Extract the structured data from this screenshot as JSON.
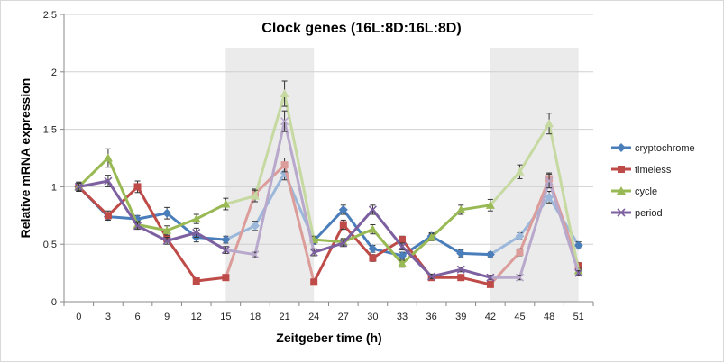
{
  "chart_data": {
    "type": "line",
    "title": "Clock genes (16L:8D:16L:8D)",
    "xlabel": "Zeitgeber time (h)",
    "ylabel": "Relative mRNA expression",
    "x": [
      0,
      3,
      6,
      9,
      12,
      15,
      18,
      21,
      24,
      27,
      30,
      33,
      36,
      39,
      42,
      45,
      48,
      51
    ],
    "ylim": [
      0,
      2.5
    ],
    "ytick_labels": [
      "0",
      "0,5",
      "1",
      "1,5",
      "2",
      "2,5"
    ],
    "yticks": [
      0,
      0.5,
      1,
      1.5,
      2,
      2.5
    ],
    "dark_periods": [
      [
        15,
        24
      ],
      [
        42,
        51
      ]
    ],
    "legend_position": "right",
    "series": [
      {
        "name": "cryptochrome",
        "color": "#4a7ebb",
        "marker": "diamond",
        "values": [
          1.0,
          0.74,
          0.72,
          0.77,
          0.56,
          0.54,
          0.66,
          1.12,
          0.53,
          0.8,
          0.46,
          0.4,
          0.57,
          0.42,
          0.41,
          0.57,
          0.91,
          0.49
        ],
        "errors": [
          0.03,
          0.03,
          0.03,
          0.05,
          0.04,
          0.03,
          0.04,
          0.06,
          0.03,
          0.04,
          0.03,
          0.03,
          0.03,
          0.03,
          0.02,
          0.03,
          0.05,
          0.03
        ]
      },
      {
        "name": "timeless",
        "color": "#be4b48",
        "marker": "square",
        "values": [
          1.0,
          0.75,
          1.0,
          0.55,
          0.18,
          0.21,
          0.94,
          1.19,
          0.17,
          0.67,
          0.38,
          0.54,
          0.21,
          0.21,
          0.15,
          0.43,
          1.07,
          0.31
        ],
        "errors": [
          0.04,
          0.04,
          0.05,
          0.03,
          0.02,
          0.02,
          0.04,
          0.06,
          0.02,
          0.04,
          0.03,
          0.03,
          0.02,
          0.02,
          0.02,
          0.03,
          0.05,
          0.03
        ]
      },
      {
        "name": "cycle",
        "color": "#98b954",
        "marker": "triangle",
        "values": [
          1.0,
          1.25,
          0.67,
          0.62,
          0.72,
          0.85,
          0.92,
          1.81,
          0.54,
          0.52,
          0.63,
          0.33,
          0.56,
          0.8,
          0.84,
          1.13,
          1.55,
          0.27
        ],
        "errors": [
          0.04,
          0.08,
          0.03,
          0.04,
          0.04,
          0.05,
          0.05,
          0.11,
          0.03,
          0.03,
          0.04,
          0.03,
          0.03,
          0.04,
          0.05,
          0.06,
          0.09,
          0.02
        ]
      },
      {
        "name": "period",
        "color": "#7d60a0",
        "marker": "x",
        "values": [
          1.0,
          1.05,
          0.66,
          0.53,
          0.6,
          0.45,
          0.41,
          1.57,
          0.43,
          0.51,
          0.8,
          0.48,
          0.22,
          0.28,
          0.21,
          0.21,
          1.05,
          0.25
        ],
        "errors": [
          0.03,
          0.05,
          0.03,
          0.03,
          0.04,
          0.03,
          0.02,
          0.09,
          0.03,
          0.03,
          0.04,
          0.03,
          0.02,
          0.02,
          0.02,
          0.02,
          0.06,
          0.02
        ]
      }
    ]
  }
}
